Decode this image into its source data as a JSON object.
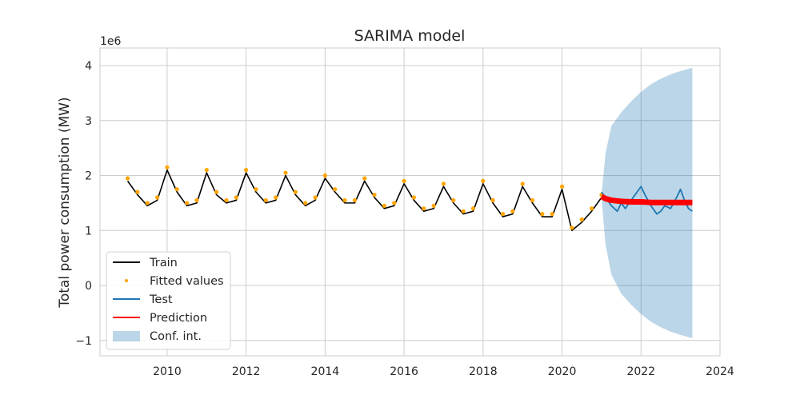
{
  "chart_data": {
    "type": "line",
    "title": "SARIMA model",
    "xlabel": "",
    "ylabel": "Total power consumption (MW)",
    "y_scale_label": "1e6",
    "y_multiplier": 1000000,
    "xlim": [
      2008.3,
      2024.0
    ],
    "ylim": [
      -1.28,
      4.32
    ],
    "x_ticks": [
      2010,
      2012,
      2014,
      2016,
      2018,
      2020,
      2022,
      2024
    ],
    "x_tick_labels": [
      "2010",
      "2012",
      "2014",
      "2016",
      "2018",
      "2020",
      "2022",
      "2024"
    ],
    "y_ticks": [
      -1,
      0,
      1,
      2,
      3,
      4
    ],
    "y_tick_labels": [
      "−1",
      "0",
      "1",
      "2",
      "3",
      "4"
    ],
    "grid": true,
    "legend_position": "bottom-left",
    "series": [
      {
        "name": "Train",
        "kind": "line",
        "color": "#000000",
        "x": [
          2009.0,
          2009.25,
          2009.5,
          2009.75,
          2010.0,
          2010.25,
          2010.5,
          2010.75,
          2011.0,
          2011.25,
          2011.5,
          2011.75,
          2012.0,
          2012.25,
          2012.5,
          2012.75,
          2013.0,
          2013.25,
          2013.5,
          2013.75,
          2014.0,
          2014.25,
          2014.5,
          2014.75,
          2015.0,
          2015.25,
          2015.5,
          2015.75,
          2016.0,
          2016.25,
          2016.5,
          2016.75,
          2017.0,
          2017.25,
          2017.5,
          2017.75,
          2018.0,
          2018.25,
          2018.5,
          2018.75,
          2019.0,
          2019.25,
          2019.5,
          2019.75,
          2020.0,
          2020.25,
          2020.5,
          2020.75,
          2021.0
        ],
        "y": [
          1.9,
          1.65,
          1.45,
          1.55,
          2.1,
          1.7,
          1.45,
          1.5,
          2.05,
          1.65,
          1.5,
          1.55,
          2.05,
          1.7,
          1.5,
          1.55,
          2.0,
          1.65,
          1.45,
          1.55,
          1.95,
          1.7,
          1.5,
          1.5,
          1.9,
          1.6,
          1.4,
          1.45,
          1.85,
          1.55,
          1.35,
          1.4,
          1.8,
          1.5,
          1.3,
          1.35,
          1.85,
          1.5,
          1.25,
          1.3,
          1.8,
          1.5,
          1.25,
          1.25,
          1.75,
          1.0,
          1.15,
          1.35,
          1.6
        ]
      },
      {
        "name": "Fitted values",
        "kind": "points",
        "color": "#ffa500",
        "x": [
          2009.0,
          2009.25,
          2009.5,
          2009.75,
          2010.0,
          2010.25,
          2010.5,
          2010.75,
          2011.0,
          2011.25,
          2011.5,
          2011.75,
          2012.0,
          2012.25,
          2012.5,
          2012.75,
          2013.0,
          2013.25,
          2013.5,
          2013.75,
          2014.0,
          2014.25,
          2014.5,
          2014.75,
          2015.0,
          2015.25,
          2015.5,
          2015.75,
          2016.0,
          2016.25,
          2016.5,
          2016.75,
          2017.0,
          2017.25,
          2017.5,
          2017.75,
          2018.0,
          2018.25,
          2018.5,
          2018.75,
          2019.0,
          2019.25,
          2019.5,
          2019.75,
          2020.0,
          2020.25,
          2020.5,
          2020.75,
          2021.0
        ],
        "y": [
          1.95,
          1.7,
          1.5,
          1.6,
          2.15,
          1.75,
          1.5,
          1.55,
          2.1,
          1.7,
          1.55,
          1.6,
          2.1,
          1.75,
          1.55,
          1.6,
          2.05,
          1.7,
          1.5,
          1.6,
          2.0,
          1.75,
          1.55,
          1.55,
          1.95,
          1.65,
          1.45,
          1.5,
          1.9,
          1.6,
          1.4,
          1.45,
          1.85,
          1.55,
          1.35,
          1.4,
          1.9,
          1.55,
          1.3,
          1.35,
          1.85,
          1.55,
          1.3,
          1.3,
          1.8,
          1.05,
          1.2,
          1.4,
          1.65
        ]
      },
      {
        "name": "Test",
        "kind": "line",
        "color": "#1f77b4",
        "x": [
          2021.0,
          2021.1,
          2021.25,
          2021.4,
          2021.5,
          2021.6,
          2021.75,
          2021.9,
          2022.0,
          2022.1,
          2022.25,
          2022.4,
          2022.5,
          2022.6,
          2022.75,
          2022.9,
          2023.0,
          2023.1,
          2023.2,
          2023.3
        ],
        "y": [
          1.7,
          1.6,
          1.45,
          1.35,
          1.5,
          1.4,
          1.55,
          1.7,
          1.8,
          1.65,
          1.45,
          1.3,
          1.35,
          1.45,
          1.4,
          1.6,
          1.75,
          1.55,
          1.4,
          1.35
        ]
      },
      {
        "name": "Prediction",
        "kind": "line",
        "color": "#ff0000",
        "x": [
          2021.0,
          2021.1,
          2021.25,
          2021.5,
          2021.75,
          2022.0,
          2022.25,
          2022.5,
          2022.75,
          2023.0,
          2023.3
        ],
        "y": [
          1.62,
          1.58,
          1.55,
          1.53,
          1.52,
          1.52,
          1.51,
          1.51,
          1.51,
          1.51,
          1.51
        ]
      },
      {
        "name": "Conf. int.",
        "kind": "band",
        "color": "#1f77b4",
        "x": [
          2021.0,
          2021.1,
          2021.25,
          2021.5,
          2021.75,
          2022.0,
          2022.25,
          2022.5,
          2022.75,
          2023.0,
          2023.3
        ],
        "lower": [
          1.6,
          0.75,
          0.2,
          -0.15,
          -0.35,
          -0.52,
          -0.66,
          -0.76,
          -0.84,
          -0.9,
          -0.96
        ],
        "upper": [
          1.65,
          2.4,
          2.9,
          3.15,
          3.35,
          3.52,
          3.66,
          3.76,
          3.84,
          3.9,
          3.96
        ]
      }
    ]
  }
}
